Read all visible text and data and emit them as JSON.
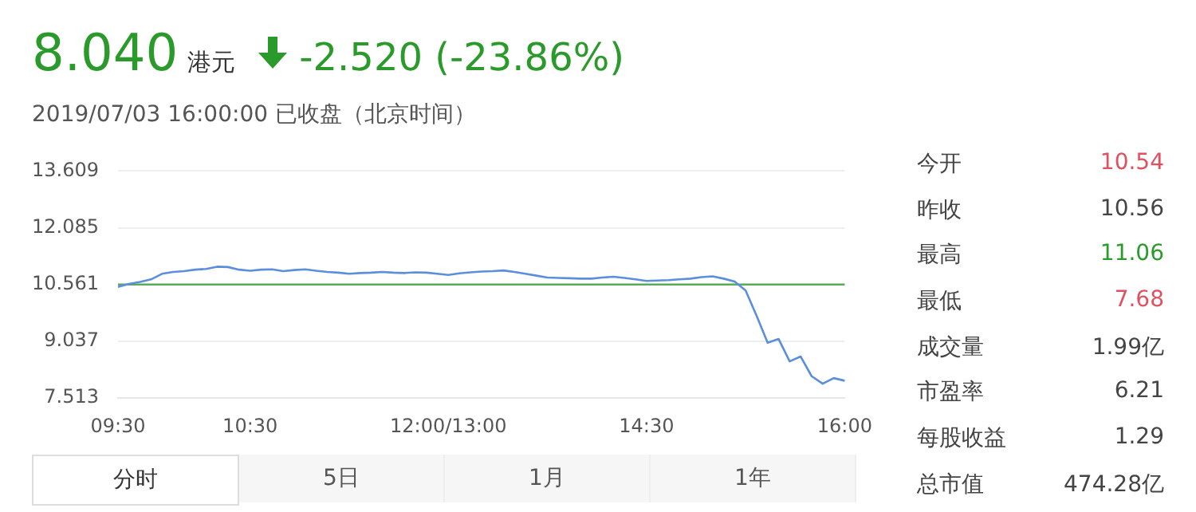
{
  "chart_data": [
    {
      "type": "line",
      "title": "8.040",
      "annotations": [
        "港元",
        "-2.520 (-23.86%)",
        "2019/07/03 16:00:00 已收盘（北京时间）",
        "分时",
        "5日",
        "1月",
        "1年"
      ],
      "categories": [
        "09:30",
        null,
        null,
        null,
        null,
        null,
        null,
        null,
        null,
        null,
        null,
        null,
        "10:30",
        null,
        null,
        null,
        null,
        null,
        null,
        null,
        null,
        null,
        null,
        null,
        null,
        null,
        null,
        null,
        null,
        null,
        "12:00/13:00",
        null,
        null,
        null,
        null,
        null,
        null,
        null,
        null,
        null,
        null,
        null,
        null,
        null,
        null,
        null,
        null,
        null,
        "14:30",
        null,
        null,
        null,
        null,
        null,
        null,
        null,
        null,
        null,
        null,
        null,
        null,
        null,
        null,
        null,
        null,
        null,
        "16:00"
      ],
      "series": [
        {
          "color": "#5b8fde",
          "values": [
            10.5,
            10.58,
            10.63,
            10.7,
            10.85,
            10.9,
            10.92,
            10.96,
            10.98,
            11.04,
            11.03,
            10.96,
            10.93,
            10.96,
            10.97,
            10.92,
            10.95,
            10.97,
            10.93,
            10.9,
            10.88,
            10.85,
            10.87,
            10.88,
            10.9,
            10.88,
            10.87,
            10.89,
            10.88,
            10.85,
            10.82,
            10.86,
            10.89,
            10.91,
            10.92,
            10.94,
            10.9,
            10.85,
            10.8,
            10.75,
            10.74,
            10.73,
            10.72,
            10.72,
            10.75,
            10.77,
            10.74,
            10.7,
            10.66,
            10.67,
            10.68,
            10.7,
            10.72,
            10.76,
            10.78,
            10.72,
            10.64,
            10.4,
            9.72,
            9.0,
            9.1,
            8.5,
            8.63,
            8.1,
            7.9,
            8.05,
            7.98
          ]
        }
      ],
      "ylim": [
        7.513,
        13.609
      ],
      "yticks": [
        {
          "value": 7.513,
          "label": "7.513"
        },
        {
          "value": 9.037,
          "label": "9.037"
        },
        {
          "value": 10.561,
          "label": "10.561"
        },
        {
          "value": 12.085,
          "label": "12.085"
        },
        {
          "value": 13.609,
          "label": "13.609"
        }
      ],
      "ref_lines": [
        {
          "axis": "y",
          "value": 10.561,
          "color": "#5aaa5a"
        }
      ],
      "grid": "y",
      "legend": false,
      "marker": "none",
      "line_style": "solid"
    },
    {
      "type": "other",
      "categories": [
        "今开",
        "昨收",
        "最高",
        "最低",
        "成交量",
        "市盈率",
        "每股收益",
        "总市值"
      ],
      "value_labels": [
        "10.54",
        "10.56",
        "11.06",
        "7.68",
        "1.99亿",
        "6.21",
        "1.29",
        "474.28亿"
      ],
      "colors": [
        "#e05060",
        "#444444",
        "#2a9a2a",
        "#e05060",
        "#444444",
        "#444444",
        "#444444",
        "#444444"
      ]
    }
  ]
}
